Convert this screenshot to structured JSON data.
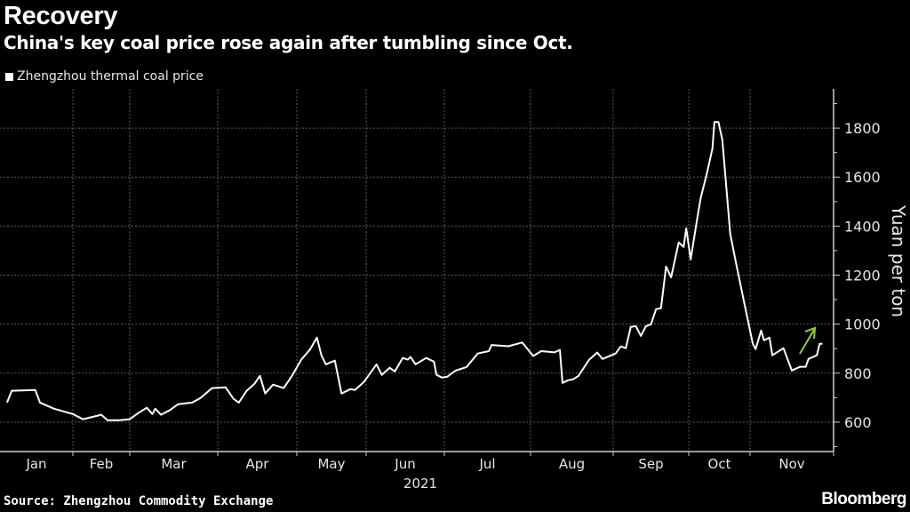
{
  "header": {
    "title": "Recovery",
    "subtitle": "China's key coal price rose again after tumbling since Oct."
  },
  "footer": {
    "source": "Source: Zhengzhou Commodity Exchange",
    "logo": "Bloomberg"
  },
  "colors": {
    "background": "#000000",
    "line": "#ffffff",
    "arrow": "#8fd12f",
    "grid": "#555555"
  },
  "chart_data": {
    "type": "line",
    "title": "Recovery",
    "subtitle": "China's key coal price rose again after tumbling since Oct.",
    "legend": [
      "Zhengzhou thermal coal price"
    ],
    "legend_position": "top-left",
    "ylabel": "Yuan per ton",
    "y_axis_side": "right",
    "ylim": [
      480,
      1960
    ],
    "yticks": [
      600,
      800,
      1000,
      1200,
      1400,
      1600,
      1800
    ],
    "xticks": [
      "Jan",
      "Feb",
      "Mar",
      "Apr",
      "May",
      "Jun",
      "Jul",
      "Aug",
      "Sep",
      "Oct",
      "Nov"
    ],
    "xlabel_year": "2021",
    "grid": true,
    "annotation": "green-up-arrow",
    "series": [
      {
        "name": "Zhengzhou thermal coal price",
        "points": [
          [
            "2021-01-04",
            680
          ],
          [
            "2021-01-06",
            728
          ],
          [
            "2021-01-16",
            731
          ],
          [
            "2021-01-18",
            680
          ],
          [
            "2021-01-24",
            655
          ],
          [
            "2021-02-01",
            633
          ],
          [
            "2021-02-06",
            612
          ],
          [
            "2021-02-15",
            630
          ],
          [
            "2021-02-18",
            608
          ],
          [
            "2021-02-24",
            608
          ],
          [
            "2021-03-01",
            612
          ],
          [
            "2021-03-04",
            637
          ],
          [
            "2021-03-07",
            659
          ],
          [
            "2021-03-09",
            633
          ],
          [
            "2021-03-10",
            655
          ],
          [
            "2021-03-12",
            630
          ],
          [
            "2021-03-15",
            648
          ],
          [
            "2021-03-18",
            673
          ],
          [
            "2021-03-23",
            680
          ],
          [
            "2021-03-26",
            699
          ],
          [
            "2021-03-30",
            739
          ],
          [
            "2021-04-04",
            742
          ],
          [
            "2021-04-07",
            695
          ],
          [
            "2021-04-09",
            680
          ],
          [
            "2021-04-12",
            728
          ],
          [
            "2021-04-15",
            757
          ],
          [
            "2021-04-17",
            789
          ],
          [
            "2021-04-19",
            717
          ],
          [
            "2021-04-22",
            753
          ],
          [
            "2021-04-26",
            739
          ],
          [
            "2021-04-29",
            786
          ],
          [
            "2021-05-03",
            855
          ],
          [
            "2021-05-07",
            898
          ],
          [
            "2021-05-10",
            945
          ],
          [
            "2021-05-12",
            873
          ],
          [
            "2021-05-14",
            836
          ],
          [
            "2021-05-18",
            851
          ],
          [
            "2021-05-21",
            717
          ],
          [
            "2021-05-25",
            735
          ],
          [
            "2021-05-27",
            731
          ],
          [
            "2021-05-31",
            764
          ],
          [
            "2021-06-03",
            807
          ],
          [
            "2021-06-05",
            836
          ],
          [
            "2021-06-07",
            793
          ],
          [
            "2021-06-10",
            822
          ],
          [
            "2021-06-12",
            807
          ],
          [
            "2021-06-15",
            862
          ],
          [
            "2021-06-17",
            855
          ],
          [
            "2021-06-18",
            866
          ],
          [
            "2021-06-20",
            836
          ],
          [
            "2021-06-24",
            862
          ],
          [
            "2021-06-27",
            847
          ],
          [
            "2021-06-28",
            793
          ],
          [
            "2021-06-30",
            782
          ],
          [
            "2021-07-02",
            785
          ],
          [
            "2021-07-05",
            810
          ],
          [
            "2021-07-09",
            825
          ],
          [
            "2021-07-13",
            880
          ],
          [
            "2021-07-17",
            890
          ],
          [
            "2021-07-18",
            915
          ],
          [
            "2021-07-24",
            910
          ],
          [
            "2021-07-29",
            925
          ],
          [
            "2021-08-02",
            870
          ],
          [
            "2021-08-05",
            890
          ],
          [
            "2021-08-10",
            885
          ],
          [
            "2021-08-12",
            895
          ],
          [
            "2021-08-13",
            760
          ],
          [
            "2021-08-15",
            771
          ],
          [
            "2021-08-17",
            775
          ],
          [
            "2021-08-19",
            789
          ],
          [
            "2021-08-23",
            855
          ],
          [
            "2021-08-26",
            884
          ],
          [
            "2021-08-28",
            858
          ],
          [
            "2021-09-02",
            880
          ],
          [
            "2021-09-04",
            909
          ],
          [
            "2021-09-06",
            902
          ],
          [
            "2021-09-08",
            989
          ],
          [
            "2021-09-10",
            992
          ],
          [
            "2021-09-12",
            952
          ],
          [
            "2021-09-14",
            992
          ],
          [
            "2021-09-16",
            999
          ],
          [
            "2021-09-18",
            1061
          ],
          [
            "2021-09-20",
            1065
          ],
          [
            "2021-09-22",
            1235
          ],
          [
            "2021-09-24",
            1191
          ],
          [
            "2021-09-27",
            1333
          ],
          [
            "2021-09-29",
            1315
          ],
          [
            "2021-09-30",
            1391
          ],
          [
            "2021-10-02",
            1264
          ],
          [
            "2021-10-05",
            1416
          ],
          [
            "2021-10-07",
            1514
          ],
          [
            "2021-10-10",
            1608
          ],
          [
            "2021-10-13",
            1717
          ],
          [
            "2021-10-14",
            1825
          ],
          [
            "2021-10-16",
            1825
          ],
          [
            "2021-10-18",
            1753
          ],
          [
            "2021-10-22",
            1369
          ],
          [
            "2021-10-25",
            1246
          ],
          [
            "2021-10-29",
            1090
          ],
          [
            "2021-11-02",
            920
          ],
          [
            "2021-11-03",
            898
          ],
          [
            "2021-11-05",
            974
          ],
          [
            "2021-11-06",
            934
          ],
          [
            "2021-11-08",
            945
          ],
          [
            "2021-11-09",
            873
          ],
          [
            "2021-11-13",
            902
          ],
          [
            "2021-11-16",
            811
          ],
          [
            "2021-11-19",
            826
          ],
          [
            "2021-11-21",
            826
          ],
          [
            "2021-11-22",
            858
          ],
          [
            "2021-11-25",
            873
          ],
          [
            "2021-11-26",
            920
          ],
          [
            "2021-11-27",
            920
          ]
        ]
      }
    ]
  }
}
